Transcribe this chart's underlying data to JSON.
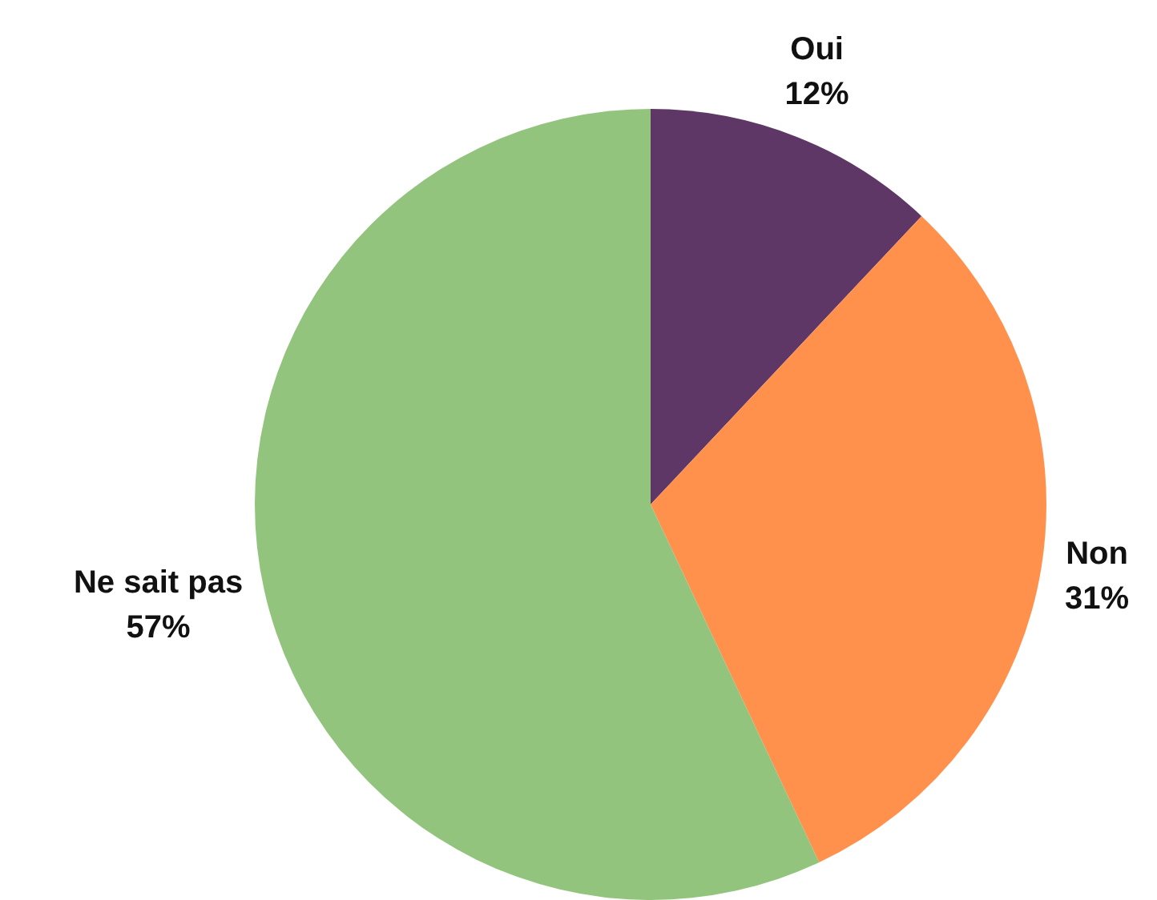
{
  "chart_data": {
    "type": "pie",
    "categories": [
      "Oui",
      "Non",
      "Ne sait pas"
    ],
    "values": [
      12,
      31,
      57
    ],
    "colors": [
      "#5e3766",
      "#ff914d",
      "#93c47d"
    ],
    "value_labels": [
      "12%",
      "31%",
      "57%"
    ],
    "legend": false
  }
}
